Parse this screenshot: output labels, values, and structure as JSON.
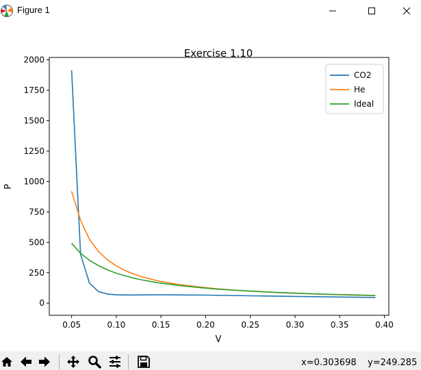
{
  "window": {
    "title": "Figure 1",
    "icons": [
      "matplotlib-logo-icon",
      "minimize-icon",
      "maximize-icon",
      "close-icon"
    ]
  },
  "chart_data": {
    "type": "line",
    "title": "Exercise 1.10",
    "xlabel": "V",
    "ylabel": "P",
    "xlim": [
      0.025,
      0.405
    ],
    "ylim": [
      -100,
      2020
    ],
    "xticks": [
      "0.05",
      "0.10",
      "0.15",
      "0.20",
      "0.25",
      "0.30",
      "0.35",
      "0.40"
    ],
    "xtick_values": [
      0.05,
      0.1,
      0.15,
      0.2,
      0.25,
      0.3,
      0.35,
      0.4
    ],
    "yticks": [
      "0",
      "250",
      "500",
      "750",
      "1000",
      "1250",
      "1500",
      "1750",
      "2000"
    ],
    "ytick_values": [
      0,
      250,
      500,
      750,
      1000,
      1250,
      1500,
      1750,
      2000
    ],
    "legend": "top-right",
    "grid": false,
    "series": [
      {
        "name": "CO2",
        "color": "#1f77b4",
        "x": [
          0.05,
          0.06,
          0.07,
          0.08,
          0.09,
          0.1,
          0.11,
          0.12,
          0.14,
          0.16,
          0.18,
          0.2,
          0.25,
          0.3,
          0.35,
          0.39
        ],
        "y": [
          1915,
          400,
          165,
          95,
          75,
          68,
          67,
          67,
          68,
          68,
          67,
          66,
          60,
          55,
          50,
          47
        ]
      },
      {
        "name": "He",
        "color": "#ff7f0e",
        "x": [
          0.05,
          0.06,
          0.07,
          0.08,
          0.09,
          0.1,
          0.11,
          0.12,
          0.13,
          0.14,
          0.15,
          0.17,
          0.19,
          0.21,
          0.23,
          0.25,
          0.28,
          0.31,
          0.34,
          0.37,
          0.39
        ],
        "y": [
          920,
          680,
          525,
          425,
          356,
          306,
          268,
          238,
          214,
          195,
          178,
          153,
          135,
          120,
          108,
          98,
          87,
          78,
          71,
          65,
          62
        ]
      },
      {
        "name": "Ideal",
        "color": "#2ca02c",
        "x": [
          0.05,
          0.06,
          0.07,
          0.08,
          0.09,
          0.1,
          0.11,
          0.12,
          0.13,
          0.14,
          0.15,
          0.17,
          0.19,
          0.21,
          0.23,
          0.25,
          0.28,
          0.31,
          0.34,
          0.37,
          0.39
        ],
        "y": [
          492,
          410,
          352,
          308,
          274,
          246,
          224,
          205,
          189,
          176,
          164,
          145,
          130,
          117,
          107,
          99,
          88,
          79,
          72,
          67,
          63
        ]
      }
    ]
  },
  "toolbar": {
    "buttons": [
      {
        "name": "home-button",
        "icon": "home-icon"
      },
      {
        "name": "back-button",
        "icon": "arrow-left-icon"
      },
      {
        "name": "forward-button",
        "icon": "arrow-right-icon"
      },
      {
        "name": "pan-button",
        "icon": "move-icon"
      },
      {
        "name": "zoom-button",
        "icon": "magnifier-icon"
      },
      {
        "name": "configure-subplots-button",
        "icon": "sliders-icon"
      },
      {
        "name": "save-button",
        "icon": "floppy-disk-icon"
      }
    ],
    "x_readout": "x=0.303698",
    "y_readout": "y=249.285"
  }
}
